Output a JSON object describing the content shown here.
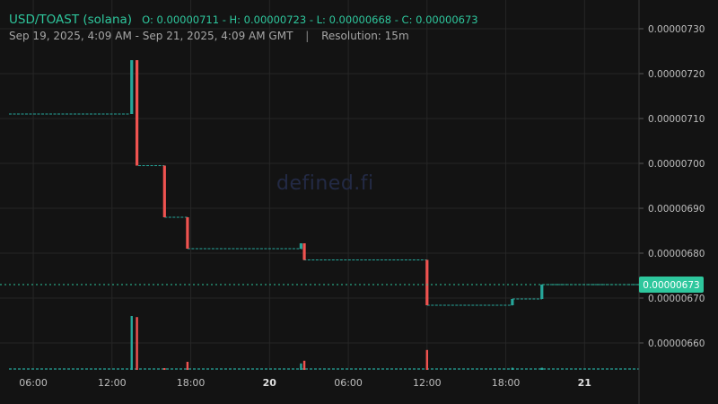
{
  "header": {
    "pair": "USD/TOAST (solana)",
    "ohlc": "O: 0.00000711 - H: 0.00000723 - L: 0.00000668 - C: 0.00000673",
    "range": "Sep 19, 2025, 4:09 AM - Sep 21, 2025, 4:09 AM GMT",
    "separator": "|",
    "resolution": "Resolution: 15m"
  },
  "watermark": "defined.fi",
  "colors": {
    "up": "#26a69a",
    "down": "#ef5350",
    "background": "#131313",
    "grid": "#262626",
    "text": "#a5a5a5",
    "header": "#2ec79d",
    "price_tag": "#2ec79d"
  },
  "chart_data": {
    "type": "candlestick",
    "ylim": [
      6.54e-06,
      7.32e-06
    ],
    "yticks": [
      "0.00000730",
      "0.00000720",
      "0.00000710",
      "0.00000700",
      "0.00000690",
      "0.00000680",
      "0.00000670",
      "0.00000660"
    ],
    "xticks": [
      {
        "label": "06:00",
        "hour": 6,
        "bold": false
      },
      {
        "label": "12:00",
        "hour": 12,
        "bold": false
      },
      {
        "label": "18:00",
        "hour": 18,
        "bold": false
      },
      {
        "label": "20",
        "hour": 24,
        "bold": true
      },
      {
        "label": "06:00",
        "hour": 30,
        "bold": false
      },
      {
        "label": "12:00",
        "hour": 36,
        "bold": false
      },
      {
        "label": "18:00",
        "hour": 42,
        "bold": false
      },
      {
        "label": "21",
        "hour": 48,
        "bold": true
      }
    ],
    "x_hours": [
      4.15,
      52.15
    ],
    "current_price": "0.00000673",
    "current_value": 6.73e-06,
    "flat_segments": [
      {
        "from": 4.15,
        "to": 13.3,
        "value": 7.11e-06
      },
      {
        "from": 14.0,
        "to": 16.0,
        "value": 6.995e-06
      },
      {
        "from": 16.0,
        "to": 17.75,
        "value": 6.88e-06
      },
      {
        "from": 17.75,
        "to": 26.5,
        "value": 6.81e-06
      },
      {
        "from": 26.6,
        "to": 36.0,
        "value": 6.785e-06
      },
      {
        "from": 36.0,
        "to": 42.5,
        "value": 6.684e-06
      },
      {
        "from": 42.5,
        "to": 44.75,
        "value": 6.698e-06
      },
      {
        "from": 44.75,
        "to": 52.15,
        "value": 6.73e-06
      }
    ],
    "candles": [
      {
        "t": 13.5,
        "o": 7.11e-06,
        "h": 7.23e-06,
        "l": 7.11e-06,
        "c": 7.23e-06,
        "vol": 1.0
      },
      {
        "t": 13.9,
        "o": 7.23e-06,
        "h": 7.23e-06,
        "l": 6.995e-06,
        "c": 6.995e-06,
        "vol": 0.98
      },
      {
        "t": 16.0,
        "o": 6.995e-06,
        "h": 6.995e-06,
        "l": 6.88e-06,
        "c": 6.88e-06,
        "vol": 0.02
      },
      {
        "t": 17.75,
        "o": 6.88e-06,
        "h": 6.88e-06,
        "l": 6.81e-06,
        "c": 6.81e-06,
        "vol": 0.15
      },
      {
        "t": 26.4,
        "o": 6.81e-06,
        "h": 6.822e-06,
        "l": 6.81e-06,
        "c": 6.822e-06,
        "vol": 0.12
      },
      {
        "t": 26.65,
        "o": 6.822e-06,
        "h": 6.822e-06,
        "l": 6.785e-06,
        "c": 6.785e-06,
        "vol": 0.17
      },
      {
        "t": 36.0,
        "o": 6.785e-06,
        "h": 6.785e-06,
        "l": 6.684e-06,
        "c": 6.684e-06,
        "vol": 0.37
      },
      {
        "t": 42.5,
        "o": 6.684e-06,
        "h": 6.698e-06,
        "l": 6.684e-06,
        "c": 6.698e-06,
        "vol": 0.04
      },
      {
        "t": 44.75,
        "o": 6.698e-06,
        "h": 6.73e-06,
        "l": 6.698e-06,
        "c": 6.73e-06,
        "vol": 0.04
      }
    ]
  }
}
